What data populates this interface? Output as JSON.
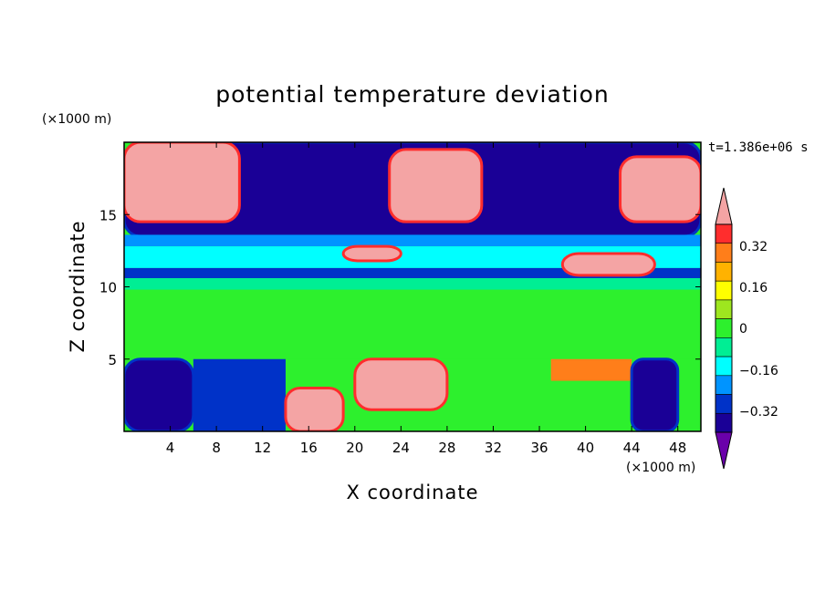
{
  "chart_data": {
    "type": "heatmap",
    "title": "potential temperature deviation",
    "xlabel": "X coordinate",
    "ylabel": "Z coordinate",
    "x_unit": "(×1000 m)",
    "y_unit": "(×1000 m)",
    "time_label": "t=1.386e+06 s",
    "xlim": [
      0,
      50
    ],
    "ylim": [
      0,
      20
    ],
    "x_ticks": [
      "4",
      "8",
      "12",
      "16",
      "20",
      "24",
      "28",
      "32",
      "36",
      "40",
      "44",
      "48"
    ],
    "y_ticks": [
      "5",
      "10",
      "15"
    ],
    "colorbar": {
      "labels": [
        "0.32",
        "0.16",
        "0",
        "−0.16",
        "−0.32"
      ],
      "levels": [
        0.32,
        0.16,
        0,
        -0.16,
        -0.32
      ],
      "colors_top_to_bottom": [
        "#f4a4a4",
        "#ff2d2d",
        "#ff7e1a",
        "#ffb200",
        "#ffff00",
        "#9ee61f",
        "#2df02d",
        "#00ee94",
        "#00ffff",
        "#0094ff",
        "#0032c8",
        "#1a0096",
        "#6a00aa"
      ]
    },
    "regions": [
      {
        "x": [
          0,
          50
        ],
        "z": [
          0,
          20
        ],
        "value": 0.0
      },
      {
        "x": [
          0,
          50
        ],
        "z": [
          13.5,
          20
        ],
        "value": -0.4
      },
      {
        "x": [
          0,
          10
        ],
        "z": [
          14.5,
          20
        ],
        "value": 0.45
      },
      {
        "x": [
          23,
          31
        ],
        "z": [
          14.5,
          19.5
        ],
        "value": 0.45
      },
      {
        "x": [
          43,
          50
        ],
        "z": [
          14.5,
          19
        ],
        "value": 0.45
      },
      {
        "x": [
          0,
          50
        ],
        "z": [
          12.8,
          13.6
        ],
        "value": -0.2
      },
      {
        "x": [
          0,
          50
        ],
        "z": [
          11.3,
          12.8
        ],
        "value": -0.12
      },
      {
        "x": [
          0,
          50
        ],
        "z": [
          10.6,
          11.3
        ],
        "value": -0.32
      },
      {
        "x": [
          0,
          50
        ],
        "z": [
          9.8,
          10.6
        ],
        "value": -0.08
      },
      {
        "x": [
          19,
          24
        ],
        "z": [
          11.8,
          12.8
        ],
        "value": 0.45
      },
      {
        "x": [
          38,
          46
        ],
        "z": [
          10.8,
          12.3
        ],
        "value": 0.45
      },
      {
        "x": [
          0,
          50
        ],
        "z": [
          5,
          9.8
        ],
        "value": 0.02
      },
      {
        "x": [
          0,
          6
        ],
        "z": [
          0,
          5
        ],
        "value": -0.4
      },
      {
        "x": [
          6,
          14
        ],
        "z": [
          0,
          5
        ],
        "value": -0.3
      },
      {
        "x": [
          14,
          19
        ],
        "z": [
          0,
          3
        ],
        "value": 0.45
      },
      {
        "x": [
          20,
          28
        ],
        "z": [
          1.5,
          5
        ],
        "value": 0.45
      },
      {
        "x": [
          37,
          44
        ],
        "z": [
          3.5,
          5
        ],
        "value": 0.3
      },
      {
        "x": [
          44,
          48
        ],
        "z": [
          0,
          5
        ],
        "value": -0.4
      }
    ]
  }
}
